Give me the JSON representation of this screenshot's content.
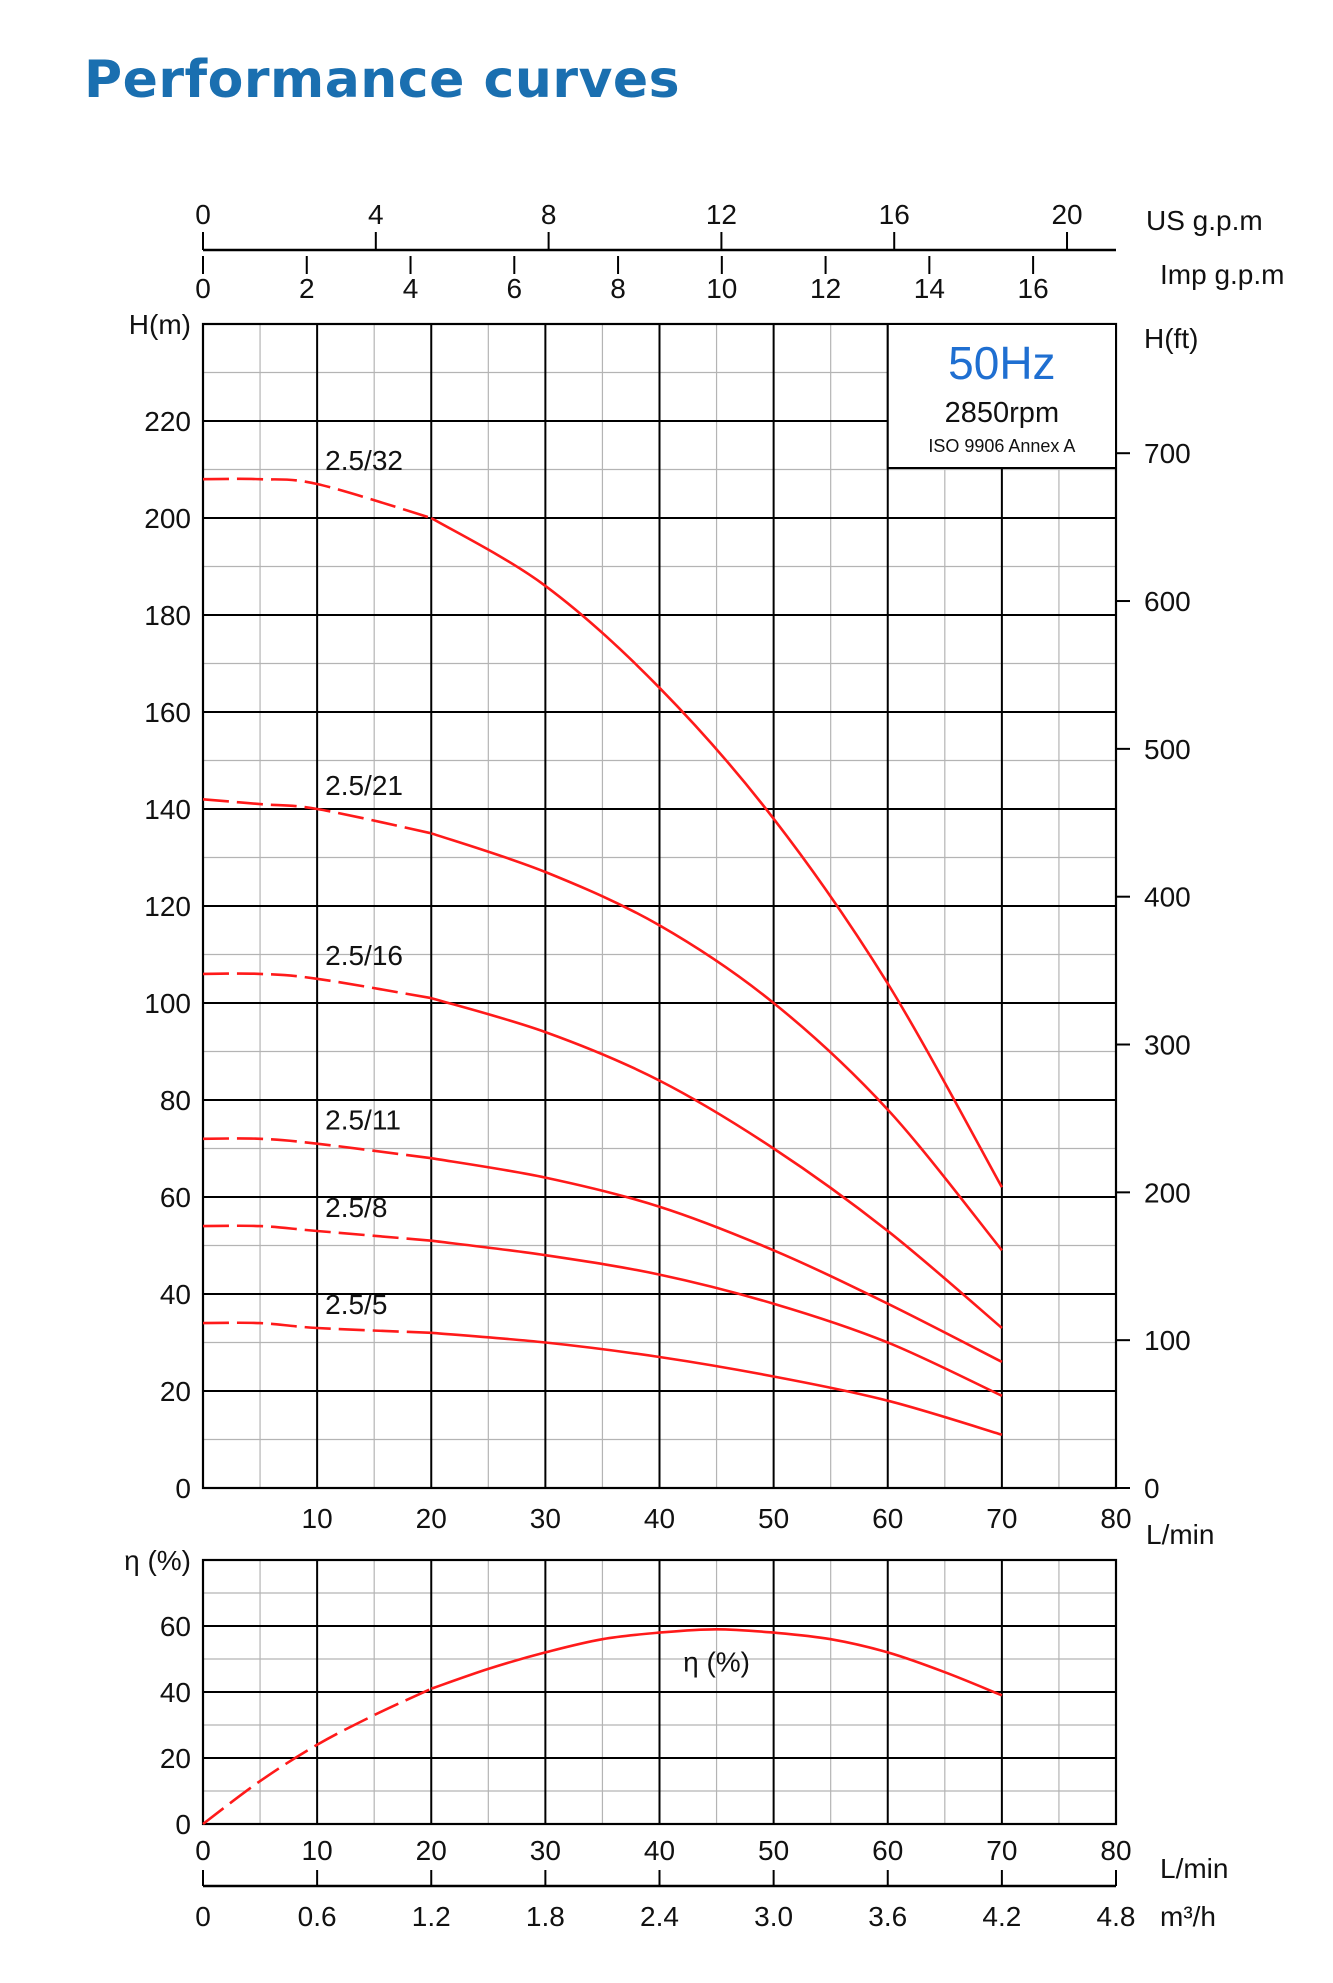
{
  "page": {
    "title": "Performance curves",
    "title_color": "#1a6fb0"
  },
  "colors": {
    "curve": "#ff1a1a",
    "grid_major": "#000000",
    "grid_minor": "#b4b4b4",
    "annotation_hz": "#1f6fd1"
  },
  "annotation": {
    "frequency": "50Hz",
    "speed": "2850rpm",
    "standard": "ISO 9906 Annex A"
  },
  "chart_data": [
    {
      "type": "line",
      "title": "",
      "xlabel": "L/min",
      "ylabel": "H(m)",
      "y2label": "H(ft)",
      "xlim": [
        0,
        80
      ],
      "ylim": [
        0,
        240
      ],
      "y2lim_ft": [
        0,
        787.4
      ],
      "x_ticks": [
        10,
        20,
        30,
        40,
        50,
        60,
        70,
        80
      ],
      "y_ticks": [
        0,
        20,
        40,
        60,
        80,
        100,
        120,
        140,
        160,
        180,
        200,
        220
      ],
      "y2_ticks": [
        0,
        100,
        200,
        300,
        400,
        500,
        600,
        700
      ],
      "top_axes": [
        {
          "unit": "US g.p.m",
          "ticks": [
            0,
            4,
            8,
            12,
            16,
            20
          ],
          "per_lpm": 0.264172
        },
        {
          "unit": "Imp g.p.m",
          "ticks": [
            0,
            2,
            4,
            6,
            8,
            10,
            12,
            14,
            16
          ],
          "per_lpm": 0.219969
        }
      ],
      "grid": true,
      "dashed_up_to_x": 20,
      "series": [
        {
          "name": "2.5/32",
          "x": [
            0,
            5,
            10,
            20,
            30,
            40,
            50,
            60,
            70
          ],
          "y": [
            208,
            208,
            207,
            200,
            186,
            165,
            138,
            104,
            62
          ]
        },
        {
          "name": "2.5/21",
          "x": [
            0,
            5,
            10,
            20,
            30,
            40,
            50,
            60,
            70
          ],
          "y": [
            142,
            141,
            140,
            135,
            127,
            116,
            100,
            78,
            49
          ]
        },
        {
          "name": "2.5/16",
          "x": [
            0,
            5,
            10,
            20,
            30,
            40,
            50,
            60,
            70
          ],
          "y": [
            106,
            106,
            105,
            101,
            94,
            84,
            70,
            53,
            33
          ]
        },
        {
          "name": "2.5/11",
          "x": [
            0,
            5,
            10,
            20,
            30,
            40,
            50,
            60,
            70
          ],
          "y": [
            72,
            72,
            71,
            68,
            64,
            58,
            49,
            38,
            26
          ]
        },
        {
          "name": "2.5/8",
          "x": [
            0,
            5,
            10,
            20,
            30,
            40,
            50,
            60,
            70
          ],
          "y": [
            54,
            54,
            53,
            51,
            48,
            44,
            38,
            30,
            19
          ]
        },
        {
          "name": "2.5/5",
          "x": [
            0,
            5,
            10,
            20,
            30,
            40,
            50,
            60,
            70
          ],
          "y": [
            34,
            34,
            33,
            32,
            30,
            27,
            23,
            18,
            11
          ]
        }
      ]
    },
    {
      "type": "line",
      "title": "",
      "xlabel": "L/min",
      "ylabel": "η (%)",
      "xlim": [
        0,
        80
      ],
      "ylim": [
        0,
        80
      ],
      "x_ticks": [
        0,
        10,
        20,
        30,
        40,
        50,
        60,
        70,
        80
      ],
      "y_ticks": [
        0,
        20,
        40,
        60
      ],
      "bottom_axis": {
        "unit": "m³/h",
        "ticks": [
          "0",
          "0.6",
          "1.2",
          "1.8",
          "2.4",
          "3.0",
          "3.6",
          "4.2",
          "4.8"
        ]
      },
      "grid": true,
      "dashed_up_to_x": 20,
      "series": [
        {
          "name": "η (%)",
          "x": [
            0,
            5,
            10,
            15,
            20,
            25,
            30,
            35,
            40,
            45,
            50,
            55,
            60,
            65,
            70
          ],
          "y": [
            0,
            13,
            24,
            33,
            41,
            47,
            52,
            56,
            58,
            59,
            58,
            56,
            52,
            46,
            39
          ]
        }
      ]
    }
  ]
}
